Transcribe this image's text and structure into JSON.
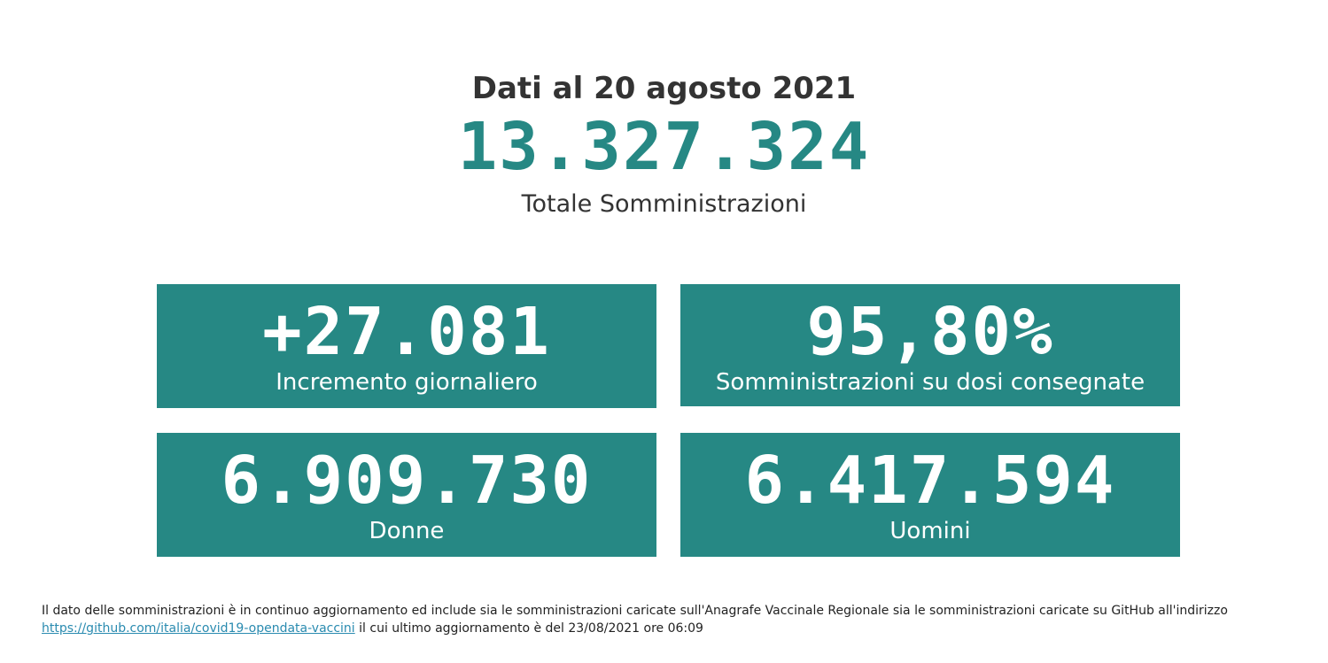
{
  "header": {
    "date_line": "Dati al 20 agosto 2021",
    "total_value": "13.327.324",
    "total_label": "Totale Somministrazioni"
  },
  "cards": {
    "increment": {
      "value": "+27.081",
      "label": "Incremento giornaliero"
    },
    "percent": {
      "value": "95,80%",
      "label": "Somministrazioni su dosi consegnate"
    },
    "women": {
      "value": "6.909.730",
      "label": "Donne"
    },
    "men": {
      "value": "6.417.594",
      "label": "Uomini"
    }
  },
  "footer": {
    "text_before_link": "Il dato delle somministrazioni è in continuo aggiornamento ed include sia le somministrazioni caricate sull'Anagrafe Vaccinale Regionale sia le somministrazioni caricate su GitHub all'indirizzo",
    "link_text": "https://github.com/italia/covid19-opendata-vaccini",
    "text_after_link": " il cui ultimo aggiornamento è del 23/08/2021 ore 06:09"
  },
  "colors": {
    "accent": "#268884",
    "text": "#333333",
    "link": "#2a8bb0",
    "card_text": "#ffffff"
  }
}
